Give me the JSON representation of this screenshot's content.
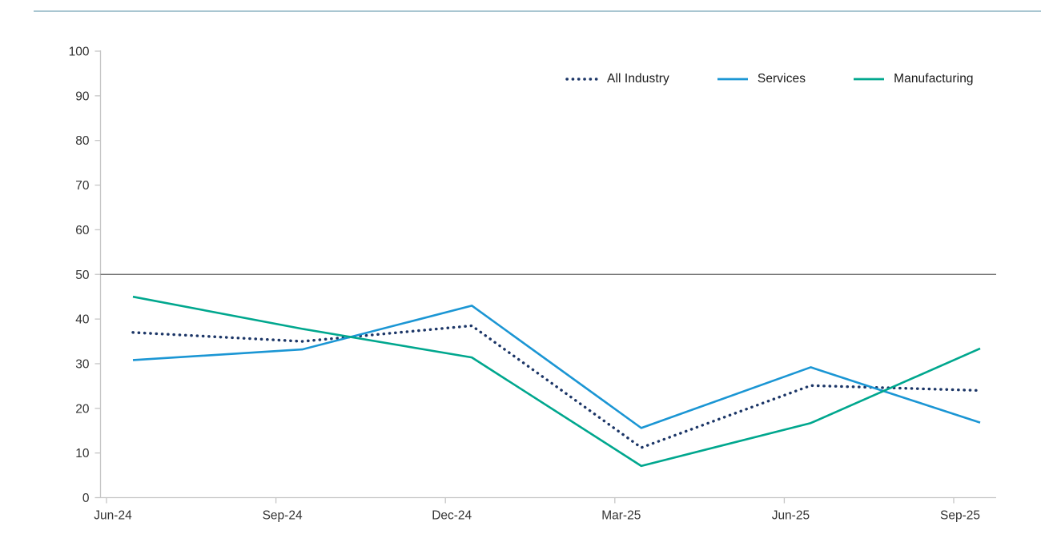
{
  "page": {
    "background": "#ffffff",
    "top_border_color": "#a9c6d1"
  },
  "chart_data": {
    "type": "line",
    "title": "",
    "xlabel": "",
    "ylabel": "",
    "x_labels": [
      "Jun-24",
      "Sep-24",
      "Dec-24",
      "Mar-25",
      "Jun-25",
      "Sep-25"
    ],
    "y_ticks": [
      0,
      10,
      20,
      30,
      40,
      50,
      60,
      70,
      80,
      90,
      100
    ],
    "ylim": [
      0,
      100
    ],
    "grid": false,
    "reference_line_y": 50,
    "reference_line_color": "#5f5f5f",
    "axis_color": "#c6c6c6",
    "tick_label_color": "#333333",
    "legend_position": "top-right",
    "series": [
      {
        "name": "All Industry",
        "style": "dotted",
        "color": "#1c3667",
        "values": [
          37,
          35,
          38.5,
          11.2,
          25.1,
          24
        ]
      },
      {
        "name": "Services",
        "style": "solid",
        "color": "#1b96d4",
        "values": [
          30.8,
          33.2,
          43,
          15.6,
          29.2,
          16.8
        ]
      },
      {
        "name": "Manufacturing",
        "style": "solid",
        "color": "#00a78e",
        "values": [
          45,
          37.8,
          31.4,
          7.1,
          16.7,
          33.4
        ]
      }
    ]
  }
}
